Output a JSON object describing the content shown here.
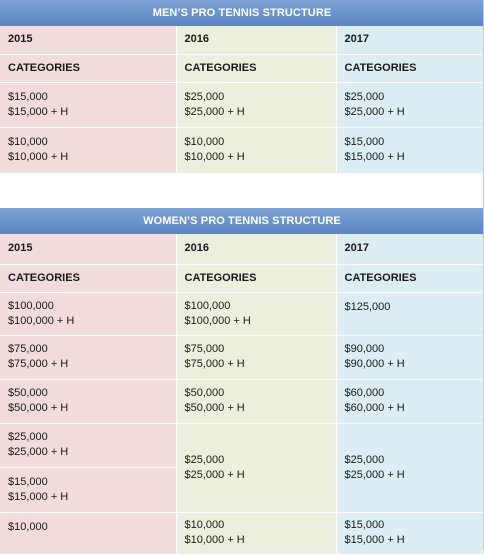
{
  "men": {
    "title": "MEN’S PRO TENNIS STRUCTURE",
    "years": [
      "2015",
      "2016",
      "2017"
    ],
    "category_label": "CATEGORIES",
    "rows": [
      {
        "y2015": [
          "$15,000",
          "$15,000 + H"
        ],
        "y2016": [
          "$25,000",
          "$25,000 + H"
        ],
        "y2017": [
          "$25,000",
          "$25,000 + H"
        ]
      },
      {
        "y2015": [
          "$10,000",
          "$10,000 + H"
        ],
        "y2016": [
          "$10,000",
          "$10,000 + H"
        ],
        "y2017": [
          "$15,000",
          "$15,000 + H"
        ]
      }
    ]
  },
  "women": {
    "title": "WOMEN’S PRO TENNIS STRUCTURE",
    "years": [
      "2015",
      "2016",
      "2017"
    ],
    "category_label": "CATEGORIES",
    "rows": [
      {
        "y2015": [
          "$100,000",
          "$100,000 + H"
        ],
        "y2016": [
          "$100,000",
          "$100,000 + H"
        ],
        "y2017": [
          "$125,000"
        ]
      },
      {
        "y2015": [
          "$75,000",
          "$75,000 + H"
        ],
        "y2016": [
          "$75,000",
          "$75,000 + H"
        ],
        "y2017": [
          "$90,000",
          "$90,000 + H"
        ]
      },
      {
        "y2015": [
          "$50,000",
          "$50,000 + H"
        ],
        "y2016": [
          "$50,000",
          "$50,000 + H"
        ],
        "y2017": [
          "$60,000",
          "$60,000 + H"
        ]
      },
      {
        "y2015": [
          "$25,000",
          "$25,000 + H"
        ],
        "y2016": [
          "$25,000",
          "$25,000 + H"
        ],
        "y2017": [
          "$25,000",
          "$25,000 + H"
        ]
      },
      {
        "y2015": [
          "$15,000",
          "$15,000 + H"
        ]
      },
      {
        "y2015": [
          "$10,000"
        ],
        "y2016": [
          "$10,000",
          "$10,000 + H"
        ],
        "y2017": [
          "$15,000",
          "$15,000 + H"
        ]
      }
    ]
  }
}
